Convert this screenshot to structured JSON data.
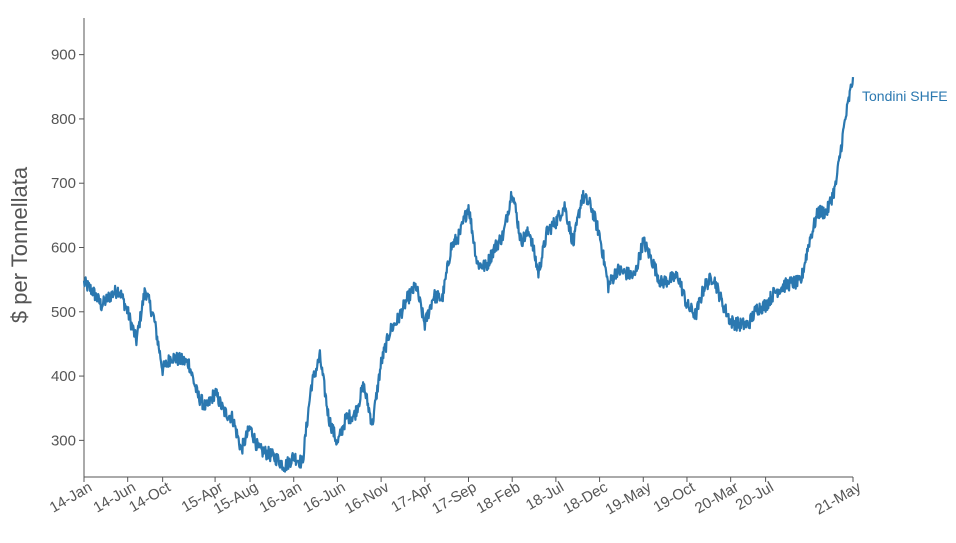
{
  "chart_data": {
    "type": "line",
    "title": "",
    "xlabel": "",
    "ylabel": "$ per Tonnellata",
    "ylim": [
      243,
      957
    ],
    "yticks": [
      300,
      400,
      500,
      600,
      700,
      800,
      900
    ],
    "xticks": [
      "14-Jan",
      "14-Jun",
      "14-Oct",
      "15-Apr",
      "15-Aug",
      "16-Jan",
      "16-Jun",
      "16-Nov",
      "17-Apr",
      "17-Sep",
      "18-Feb",
      "18-Jul",
      "18-Dec",
      "19-May",
      "19-Oct",
      "20-Mar",
      "20-Jul",
      "21-May"
    ],
    "grid": false,
    "legend": "none",
    "series_color": "#2b78b0",
    "series": [
      {
        "name": "Tondini SHFE",
        "x": [
          "2014-01",
          "2014-02",
          "2014-03",
          "2014-04",
          "2014-05",
          "2014-06",
          "2014-07",
          "2014-08",
          "2014-09",
          "2014-10",
          "2014-11",
          "2014-12",
          "2015-01",
          "2015-02",
          "2015-03",
          "2015-04",
          "2015-05",
          "2015-06",
          "2015-07",
          "2015-08",
          "2015-09",
          "2015-10",
          "2015-11",
          "2015-12",
          "2016-01",
          "2016-02",
          "2016-03",
          "2016-04",
          "2016-05",
          "2016-06",
          "2016-07",
          "2016-08",
          "2016-09",
          "2016-10",
          "2016-11",
          "2016-12",
          "2017-01",
          "2017-02",
          "2017-03",
          "2017-04",
          "2017-05",
          "2017-06",
          "2017-07",
          "2017-08",
          "2017-09",
          "2017-10",
          "2017-11",
          "2017-12",
          "2018-01",
          "2018-02",
          "2018-03",
          "2018-04",
          "2018-05",
          "2018-06",
          "2018-07",
          "2018-08",
          "2018-09",
          "2018-10",
          "2018-11",
          "2018-12",
          "2019-01",
          "2019-02",
          "2019-03",
          "2019-04",
          "2019-05",
          "2019-06",
          "2019-07",
          "2019-08",
          "2019-09",
          "2019-10",
          "2019-11",
          "2019-12",
          "2020-01",
          "2020-02",
          "2020-03",
          "2020-04",
          "2020-05",
          "2020-06",
          "2020-07",
          "2020-08",
          "2020-09",
          "2020-10",
          "2020-11",
          "2020-12",
          "2021-01",
          "2021-02",
          "2021-03",
          "2021-04",
          "2021-05"
        ],
        "values": [
          545,
          532,
          510,
          525,
          535,
          500,
          455,
          535,
          490,
          410,
          430,
          425,
          420,
          370,
          350,
          375,
          345,
          335,
          285,
          320,
          285,
          280,
          272,
          260,
          275,
          265,
          385,
          430,
          335,
          295,
          335,
          340,
          385,
          325,
          420,
          470,
          490,
          520,
          540,
          480,
          525,
          520,
          600,
          620,
          665,
          575,
          570,
          600,
          620,
          690,
          610,
          625,
          560,
          625,
          640,
          665,
          605,
          680,
          665,
          620,
          540,
          565,
          560,
          555,
          610,
          580,
          545,
          550,
          555,
          510,
          495,
          540,
          555,
          515,
          485,
          480,
          480,
          505,
          510,
          530,
          540,
          545,
          545,
          610,
          655,
          655,
          695,
          790,
          865
        ]
      }
    ]
  }
}
